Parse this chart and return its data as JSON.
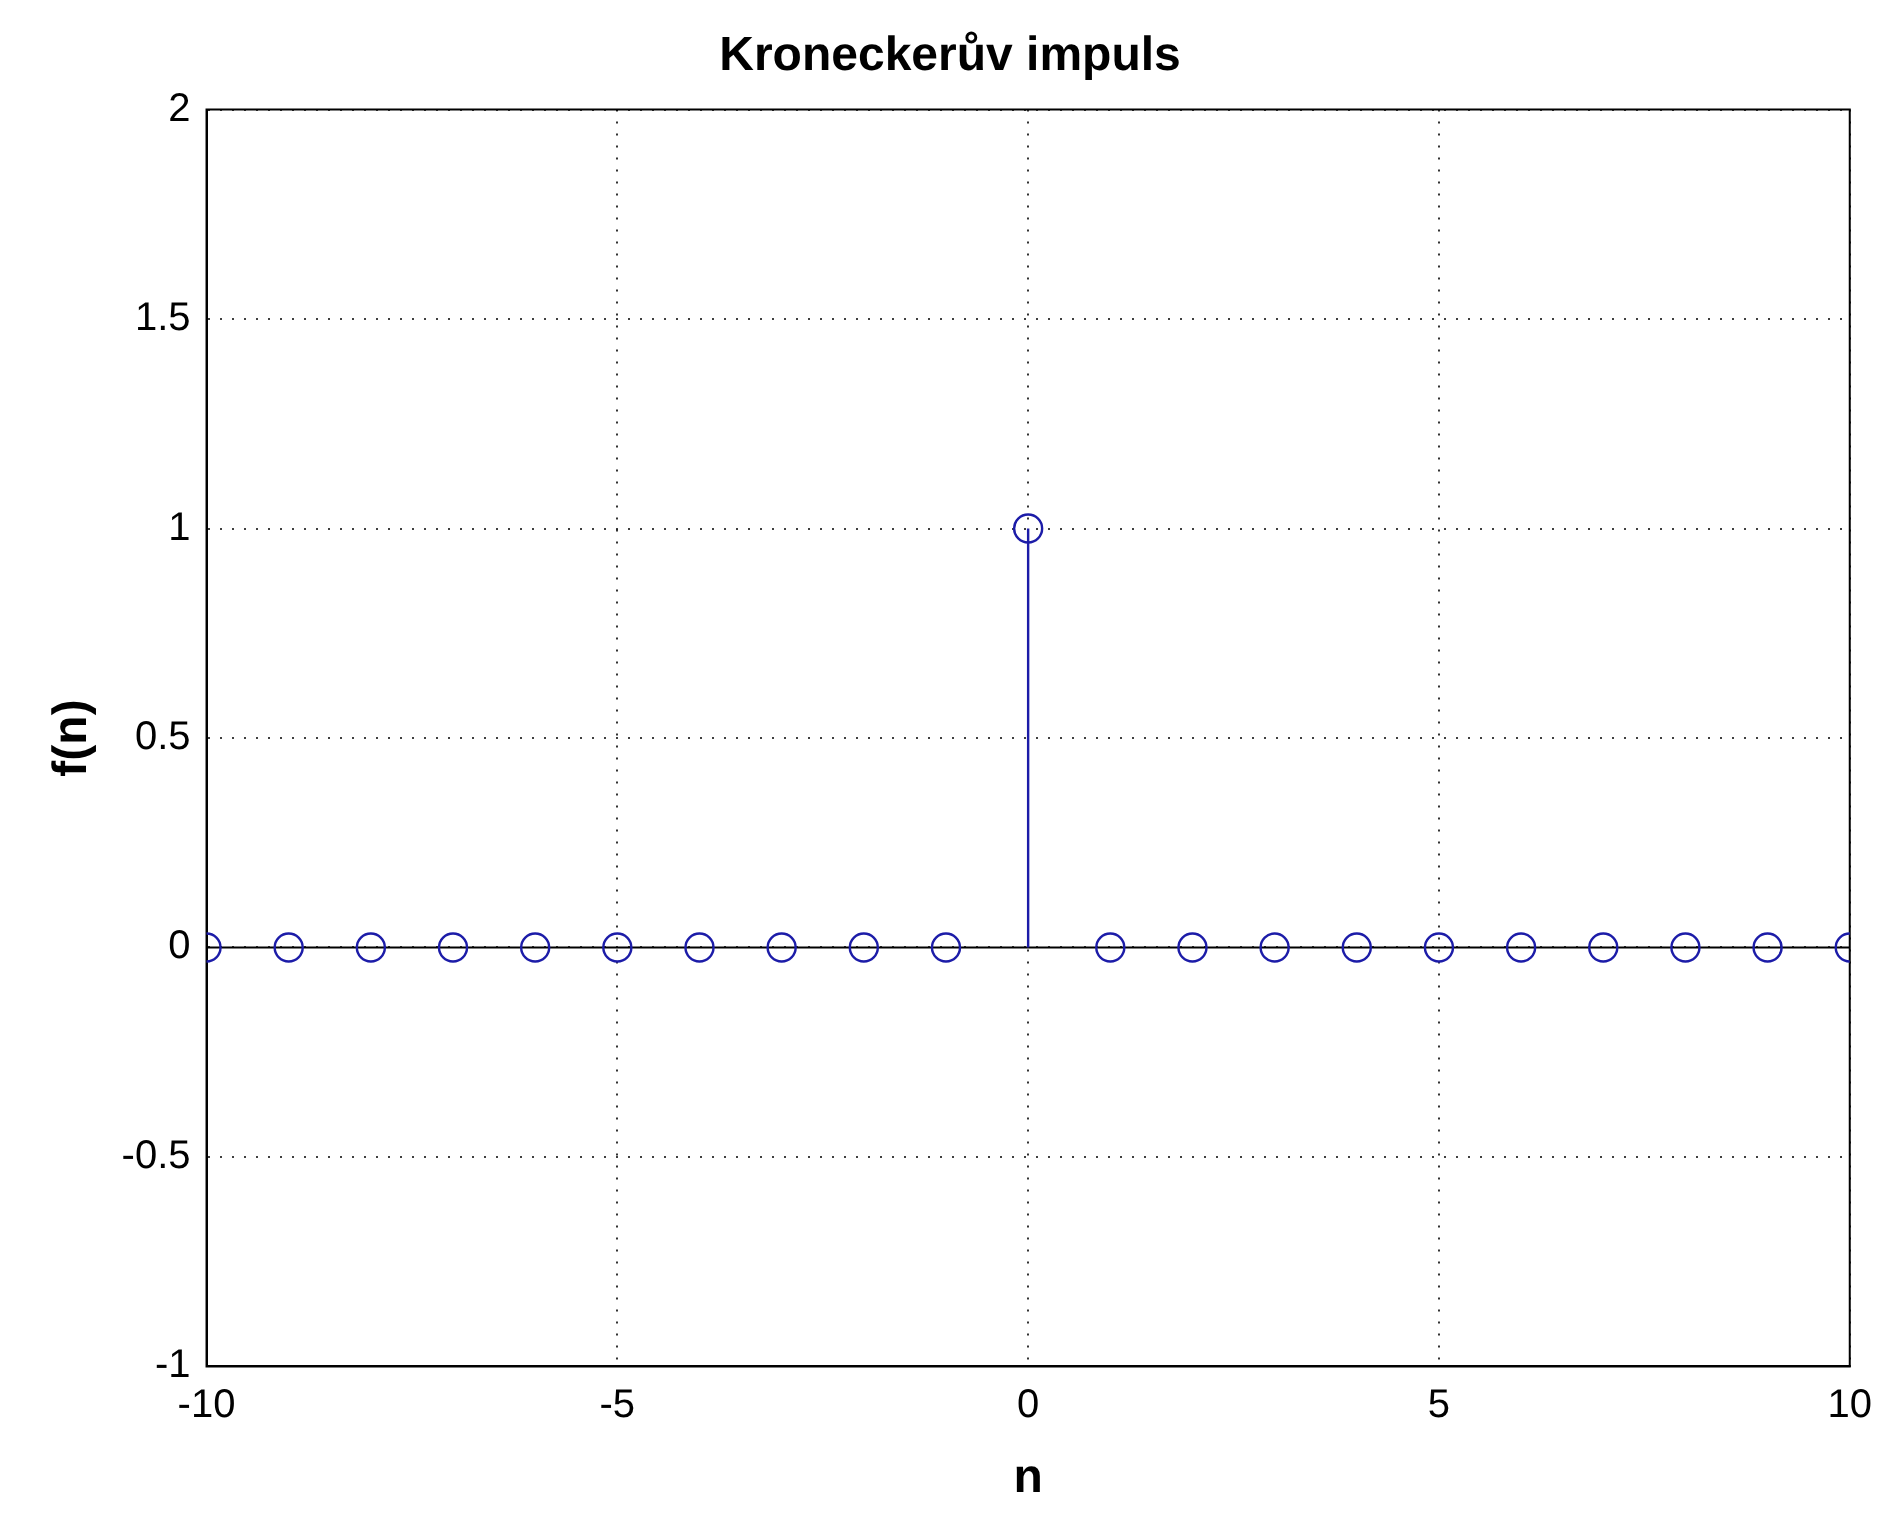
{
  "chart_data": {
    "type": "lollipop",
    "title": "Kroneckerův impuls",
    "xlabel": "n",
    "ylabel": "f(n)",
    "x": [
      -10,
      -9,
      -8,
      -7,
      -6,
      -5,
      -4,
      -3,
      -2,
      -1,
      0,
      1,
      2,
      3,
      4,
      5,
      6,
      7,
      8,
      9,
      10
    ],
    "series": [
      {
        "color": "#1c1ca8",
        "values": [
          0,
          0,
          0,
          0,
          0,
          0,
          0,
          0,
          0,
          0,
          1,
          0,
          0,
          0,
          0,
          0,
          0,
          0,
          0,
          0,
          0
        ]
      }
    ],
    "xlim": [
      -10,
      10
    ],
    "xticks": [
      -10,
      -5,
      0,
      5,
      10
    ],
    "ylim": [
      -1,
      2
    ],
    "yticks": [
      -1,
      -0.5,
      0,
      0.5,
      1,
      1.5,
      2
    ],
    "ref_lines": [
      {
        "axis": "y",
        "value": 0,
        "color": "#000000"
      }
    ],
    "grid": true,
    "legend": false,
    "marker": "circle"
  }
}
